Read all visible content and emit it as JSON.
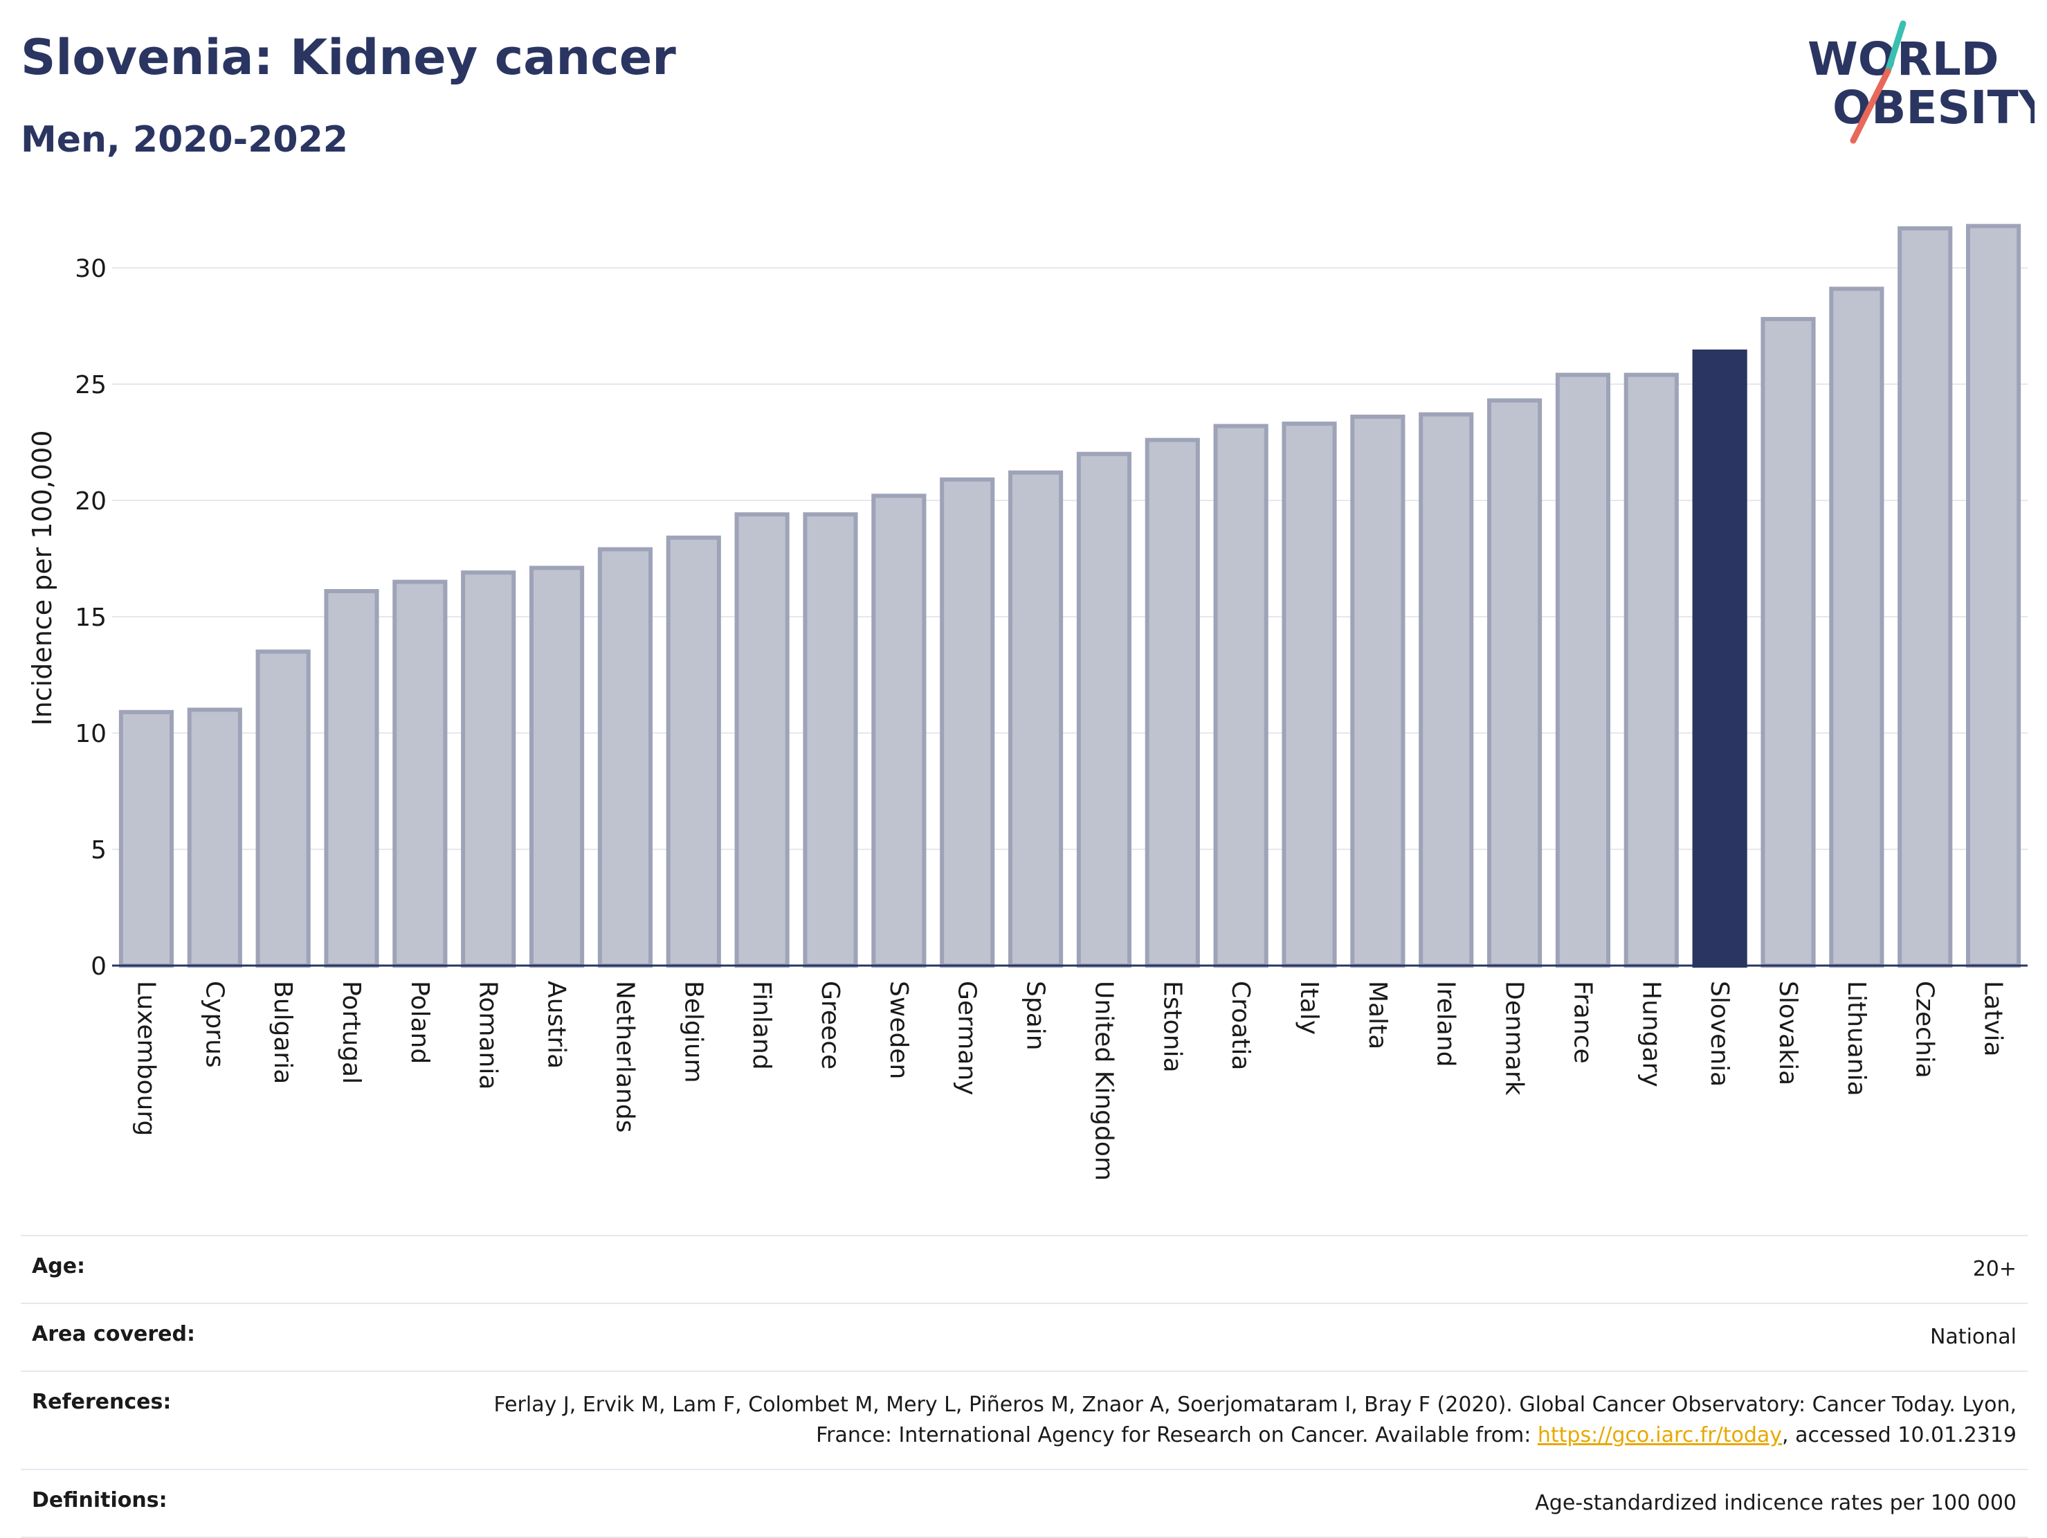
{
  "header": {
    "title": "Slovenia: Kidney cancer",
    "subtitle": "Men, 2020-2022"
  },
  "logo": {
    "line1": "WORLD",
    "line2": "OBESITY",
    "colors": {
      "text": "#2a3561",
      "teal": "#3bbfb0",
      "coral": "#e8685a"
    }
  },
  "chart_data": {
    "type": "bar",
    "title": "Slovenia: Kidney cancer",
    "subtitle": "Men, 2020-2022",
    "ylabel": "Incidence per 100,000",
    "xlabel": "",
    "ylim": [
      0,
      32.5
    ],
    "yticks": [
      0,
      5,
      10,
      15,
      20,
      25,
      30
    ],
    "grid": true,
    "highlight": "Slovenia",
    "colors": {
      "default": "#bfc3d0",
      "default_border": "#9ea3b8",
      "highlight": "#2a3561"
    },
    "categories": [
      "Luxembourg",
      "Cyprus",
      "Bulgaria",
      "Portugal",
      "Poland",
      "Romania",
      "Austria",
      "Netherlands",
      "Belgium",
      "Finland",
      "Greece",
      "Sweden",
      "Germany",
      "Spain",
      "United Kingdom",
      "Estonia",
      "Croatia",
      "Italy",
      "Malta",
      "Ireland",
      "Denmark",
      "France",
      "Hungary",
      "Slovenia",
      "Slovakia",
      "Lithuania",
      "Czechia",
      "Latvia"
    ],
    "values": [
      10.9,
      11.0,
      13.5,
      16.1,
      16.5,
      16.9,
      17.1,
      17.9,
      18.4,
      19.4,
      19.4,
      20.2,
      20.9,
      21.2,
      22.0,
      22.6,
      23.2,
      23.3,
      23.6,
      23.7,
      24.3,
      25.4,
      25.4,
      26.4,
      27.8,
      29.1,
      31.7,
      31.8
    ]
  },
  "meta": {
    "age_label": "Age:",
    "age_value": "20+",
    "area_label": "Area covered:",
    "area_value": "National",
    "references_label": "References:",
    "references_text_1": "Ferlay J, Ervik M, Lam F, Colombet M, Mery L, Piñeros M, Znaor A, Soerjomataram I, Bray F (2020). Global Cancer Observatory: Cancer Today. Lyon, France: International Agency for Research on Cancer. Available from: ",
    "references_link": "https://gco.iarc.fr/today",
    "references_text_2": ", accessed 10.01.2319",
    "definitions_label": "Definitions:",
    "definitions_value": "Age-standardized indicence rates per 100 000"
  }
}
